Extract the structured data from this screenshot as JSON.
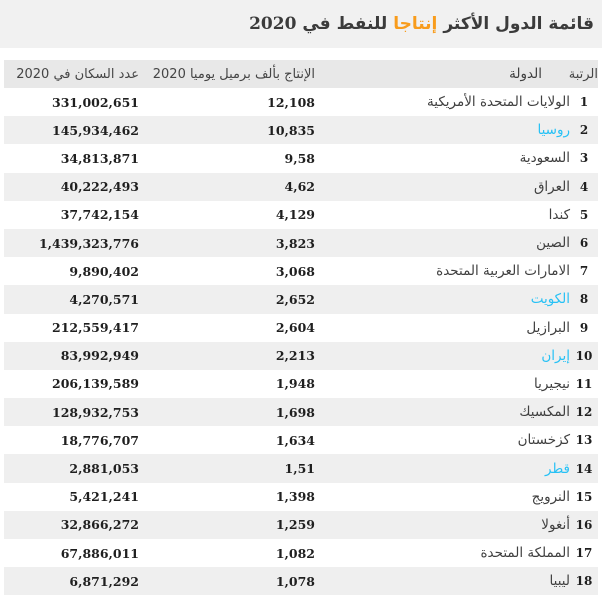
{
  "title": {
    "part1": "قائمة الدول الأكثر",
    "highlight": "إنتاجا",
    "part2": "للنفط في 2020",
    "highlight_color": "#f89c1c"
  },
  "table": {
    "headers": {
      "rank": "الرتبة",
      "country": "الدولة",
      "production": "الإنتاج بألف برميل يوميا 2020",
      "population": "عدد السكان في 2020"
    },
    "link_color": "#27c1f5",
    "rows": [
      {
        "rank": "1",
        "country": "الولايات المتحدة الأمريكية",
        "production": "12,108",
        "population": "331,002,651",
        "link": false
      },
      {
        "rank": "2",
        "country": "روسيا",
        "production": "10,835",
        "population": "145,934,462",
        "link": true
      },
      {
        "rank": "3",
        "country": "السعودية",
        "production": "9,58",
        "population": "34,813,871",
        "link": false
      },
      {
        "rank": "4",
        "country": "العراق",
        "production": "4,62",
        "population": "40,222,493",
        "link": false
      },
      {
        "rank": "5",
        "country": "كندا",
        "production": "4,129",
        "population": "37,742,154",
        "link": false
      },
      {
        "rank": "6",
        "country": "الصين",
        "production": "3,823",
        "population": "1,439,323,776",
        "link": false
      },
      {
        "rank": "7",
        "country": "الامارات العربية المتحدة",
        "production": "3,068",
        "population": "9,890,402",
        "link": false
      },
      {
        "rank": "8",
        "country": "الكويت",
        "production": "2,652",
        "population": "4,270,571",
        "link": true
      },
      {
        "rank": "9",
        "country": "البرازيل",
        "production": "2,604",
        "population": "212,559,417",
        "link": false
      },
      {
        "rank": "10",
        "country": "إيران",
        "production": "2,213",
        "population": "83,992,949",
        "link": true
      },
      {
        "rank": "11",
        "country": "نيجيريا",
        "production": "1,948",
        "population": "206,139,589",
        "link": false
      },
      {
        "rank": "12",
        "country": "المكسيك",
        "production": "1,698",
        "population": "128,932,753",
        "link": false
      },
      {
        "rank": "13",
        "country": "كزخستان",
        "production": "1,634",
        "population": "18,776,707",
        "link": false
      },
      {
        "rank": "14",
        "country": "قطر",
        "production": "1,51",
        "population": "2,881,053",
        "link": true
      },
      {
        "rank": "15",
        "country": "النرويج",
        "production": "1,398",
        "population": "5,421,241",
        "link": false
      },
      {
        "rank": "16",
        "country": "أنغولا",
        "production": "1,259",
        "population": "32,866,272",
        "link": false
      },
      {
        "rank": "17",
        "country": "المملكة المتحدة",
        "production": "1,082",
        "population": "67,886,011",
        "link": false
      },
      {
        "rank": "18",
        "country": "ليبيا",
        "production": "1,078",
        "population": "6,871,292",
        "link": false
      }
    ]
  }
}
